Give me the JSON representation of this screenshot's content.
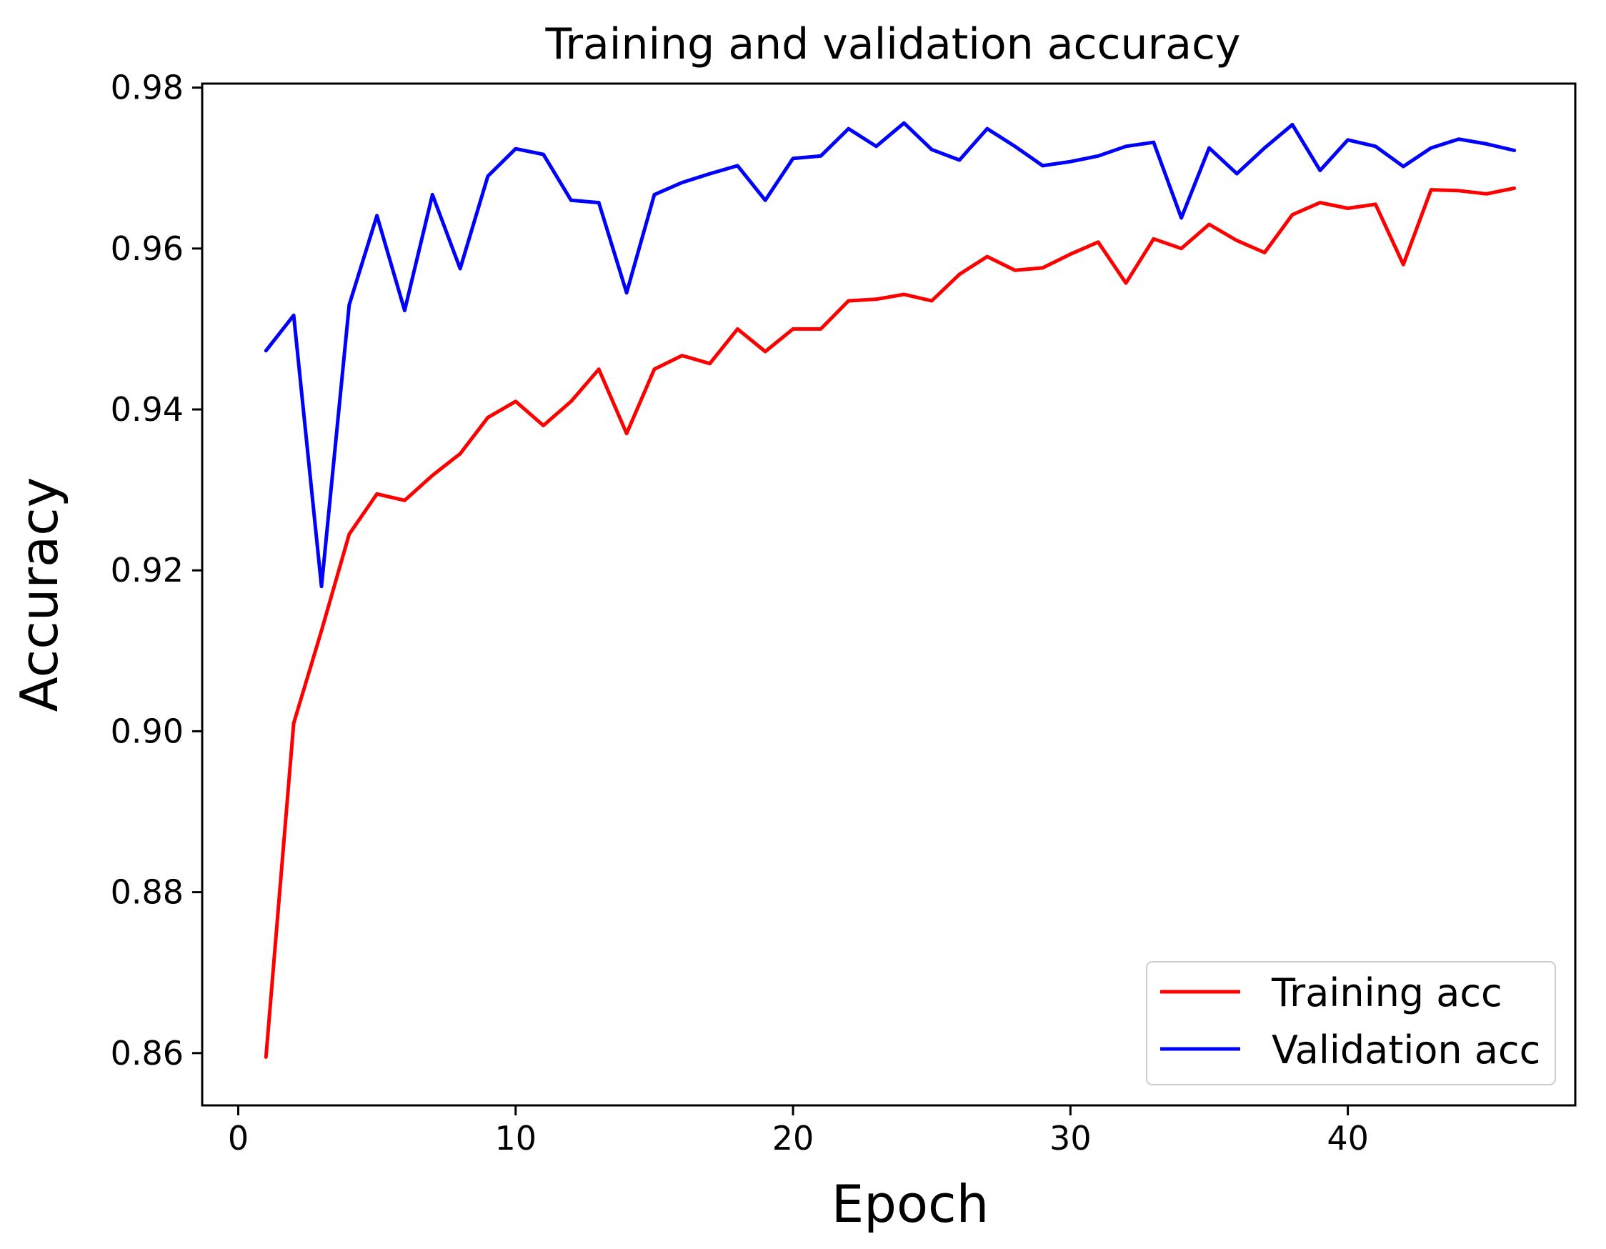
{
  "chart_data": {
    "type": "line",
    "title": "Training and validation accuracy",
    "xlabel": "Epoch",
    "ylabel": "Accuracy",
    "xlim": [
      -1.3,
      48.2
    ],
    "ylim": [
      0.8535,
      0.9805
    ],
    "xticks": [
      0,
      10,
      20,
      30,
      40
    ],
    "xtick_labels": [
      "0",
      "10",
      "20",
      "30",
      "40"
    ],
    "yticks": [
      0.86,
      0.88,
      0.9,
      0.92,
      0.94,
      0.96,
      0.98
    ],
    "ytick_labels": [
      "0.86",
      "0.88",
      "0.90",
      "0.92",
      "0.94",
      "0.96",
      "0.98"
    ],
    "grid": false,
    "legend_position": "lower-right",
    "x": [
      1,
      2,
      3,
      4,
      5,
      6,
      7,
      8,
      9,
      10,
      11,
      12,
      13,
      14,
      15,
      16,
      17,
      18,
      19,
      20,
      21,
      22,
      23,
      24,
      25,
      26,
      27,
      28,
      29,
      30,
      31,
      32,
      33,
      34,
      35,
      36,
      37,
      38,
      39,
      40,
      41,
      42,
      43,
      44,
      45,
      46
    ],
    "series": [
      {
        "name": "Training acc",
        "color": "#ff0000",
        "values": [
          0.8595,
          0.901,
          0.9125,
          0.9245,
          0.9295,
          0.9287,
          0.9318,
          0.9345,
          0.939,
          0.941,
          0.938,
          0.941,
          0.945,
          0.937,
          0.945,
          0.9467,
          0.9457,
          0.95,
          0.9472,
          0.95,
          0.95,
          0.9535,
          0.9537,
          0.9543,
          0.9535,
          0.9568,
          0.959,
          0.9573,
          0.9576,
          0.9593,
          0.9608,
          0.9557,
          0.9612,
          0.96,
          0.963,
          0.961,
          0.9595,
          0.9642,
          0.9657,
          0.965,
          0.9655,
          0.958,
          0.9673,
          0.9672,
          0.9668,
          0.9675
        ]
      },
      {
        "name": "Validation acc",
        "color": "#0000ff",
        "values": [
          0.9473,
          0.9517,
          0.918,
          0.953,
          0.9641,
          0.9523,
          0.9667,
          0.9575,
          0.969,
          0.9724,
          0.9717,
          0.966,
          0.9657,
          0.9545,
          0.9667,
          0.9682,
          0.9693,
          0.9703,
          0.966,
          0.9712,
          0.9715,
          0.9749,
          0.9727,
          0.9756,
          0.9723,
          0.971,
          0.9749,
          0.9727,
          0.9703,
          0.9708,
          0.9715,
          0.9727,
          0.9732,
          0.9638,
          0.9725,
          0.9693,
          0.9725,
          0.9754,
          0.9697,
          0.9735,
          0.9727,
          0.9702,
          0.9725,
          0.9736,
          0.973,
          0.9722
        ]
      }
    ]
  }
}
